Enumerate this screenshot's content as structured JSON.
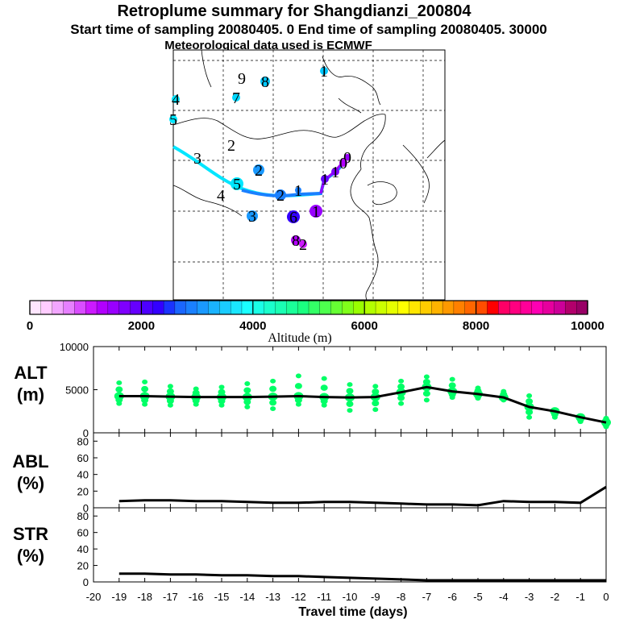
{
  "header": {
    "title": "Retroplume summary for Shangdianzi_200804",
    "subtitle": "Start time of sampling 20080405.     0     End time of sampling 20080405. 30000",
    "meteo": "Meteorological data used is ECMWF"
  },
  "colorbar": {
    "title": "Altitude (m)",
    "ticks": [
      "0",
      "2000",
      "4000",
      "6000",
      "8000",
      "10000"
    ],
    "range": [
      0,
      10000
    ],
    "colors": [
      "#ffe6ff",
      "#ffccff",
      "#f2a6ff",
      "#e680ff",
      "#d94dff",
      "#cc1aff",
      "#b200ff",
      "#9900ff",
      "#7f00ff",
      "#6600ff",
      "#4d00ff",
      "#3300ff",
      "#1a33ff",
      "#1a66ff",
      "#1a80ff",
      "#1a99ff",
      "#1ab3ff",
      "#1accff",
      "#1ae6ff",
      "#1affff",
      "#1affe6",
      "#1affcc",
      "#1affb3",
      "#1aff99",
      "#1aff80",
      "#33ff66",
      "#4dff4d",
      "#66ff33",
      "#80ff1a",
      "#99ff00",
      "#b3ff00",
      "#ccff00",
      "#e6ff00",
      "#ffff00",
      "#ffe600",
      "#ffcc00",
      "#ffb300",
      "#ff9900",
      "#ff8000",
      "#ff6600",
      "#ff4d00",
      "#ff0000",
      "#ff0066",
      "#ff0080",
      "#ff0099",
      "#ff00b3",
      "#e6009e",
      "#cc0099",
      "#b2006b",
      "#990066"
    ]
  },
  "map_labels": [
    {
      "text": "1",
      "color": "#00c8ff",
      "dot": true
    },
    {
      "text": "9",
      "color": "#1a99ff",
      "dot": false
    },
    {
      "text": "8",
      "color": "#00c8ff",
      "dot": true
    },
    {
      "text": "7",
      "color": "#00d8ff",
      "dot": true
    },
    {
      "text": "4",
      "color": "#00e6ff",
      "dot": true
    },
    {
      "text": "5",
      "color": "#00e6ff",
      "dot": true
    },
    {
      "text": "3",
      "color": "#00f0ff",
      "dot": false
    },
    {
      "text": "2",
      "color": "#00f0ff",
      "dot": false
    },
    {
      "text": "2",
      "color": "#1a99ff",
      "dot": true
    },
    {
      "text": "4",
      "color": "#00e6ff",
      "dot": false
    },
    {
      "text": "5",
      "color": "#00e6ff",
      "dot": true
    },
    {
      "text": "3",
      "color": "#1a99ff",
      "dot": true
    },
    {
      "text": "2",
      "color": "#1a80ff",
      "dot": true
    },
    {
      "text": "1",
      "color": "#1a80ff",
      "dot": true
    },
    {
      "text": "6",
      "color": "#3300ff",
      "dot": true
    },
    {
      "text": "8",
      "color": "#b200ff",
      "dot": true
    },
    {
      "text": "2",
      "color": "#cc1aff",
      "dot": true
    },
    {
      "text": "1",
      "color": "#6600ff",
      "dot": true
    },
    {
      "text": "0",
      "color": "#9900ff",
      "dot": true
    },
    {
      "text": "1",
      "color": "#8000ff",
      "dot": true
    },
    {
      "text": "0",
      "color": "#b200ff",
      "dot": true
    },
    {
      "text": "1",
      "color": "#9900ff",
      "dot": true
    }
  ],
  "chart_data": [
    {
      "type": "line",
      "panel": "ALT",
      "ylabel_line1": "ALT",
      "ylabel_line2": "(m)",
      "ylim": [
        0,
        10000
      ],
      "yticks": [
        "10000",
        "5000",
        "0"
      ],
      "x": [
        -19,
        -18,
        -17,
        -16,
        -15,
        -14,
        -13,
        -12,
        -11,
        -10,
        -9,
        -8,
        -7,
        -6,
        -5,
        -4,
        -3,
        -2,
        -1,
        0
      ],
      "values": [
        4250,
        4250,
        4200,
        4150,
        4150,
        4150,
        4200,
        4250,
        4150,
        4100,
        4150,
        4700,
        5300,
        4800,
        4500,
        4100,
        3000,
        2500,
        1800,
        1200
      ],
      "upper": [
        5800,
        5900,
        5400,
        5100,
        5300,
        5700,
        6000,
        6600,
        6300,
        5600,
        5400,
        6000,
        6500,
        6200,
        5200,
        4800,
        4300,
        2600,
        1700,
        1700
      ],
      "lower": [
        3400,
        3300,
        3200,
        3300,
        3200,
        3000,
        2800,
        3300,
        3200,
        2600,
        2700,
        3400,
        3800,
        4100,
        4000,
        3800,
        1800,
        1800,
        1300,
        700
      ],
      "band_color": "#00ff66"
    },
    {
      "type": "line",
      "panel": "ABL",
      "ylabel_line1": "ABL",
      "ylabel_line2": "(%)",
      "ylim": [
        0,
        90
      ],
      "yticks": [
        "80",
        "60",
        "40",
        "20",
        "0"
      ],
      "x": [
        -19,
        -18,
        -17,
        -16,
        -15,
        -14,
        -13,
        -12,
        -11,
        -10,
        -9,
        -8,
        -7,
        -6,
        -5,
        -4,
        -3,
        -2,
        -1,
        0
      ],
      "values": [
        8,
        9,
        9,
        8,
        8,
        7,
        6,
        6,
        7,
        7,
        6,
        5,
        4,
        4,
        3,
        8,
        7,
        7,
        6,
        25
      ]
    },
    {
      "type": "line",
      "panel": "STR",
      "ylabel_line1": "STR",
      "ylabel_line2": "(%)",
      "ylim": [
        0,
        90
      ],
      "yticks": [
        "80",
        "60",
        "40",
        "20",
        "0"
      ],
      "x": [
        -19,
        -18,
        -17,
        -16,
        -15,
        -14,
        -13,
        -12,
        -11,
        -10,
        -9,
        -8,
        -7,
        -6,
        -5,
        -4,
        -3,
        -2,
        -1,
        0
      ],
      "values": [
        10,
        10,
        9,
        9,
        8,
        8,
        7,
        7,
        6,
        5,
        4,
        3,
        2,
        2,
        2,
        2,
        2,
        2,
        2,
        2
      ]
    }
  ],
  "xaxis": {
    "label": "Travel time (days)",
    "ticks": [
      "-20",
      "-19",
      "-18",
      "-17",
      "-16",
      "-15",
      "-14",
      "-13",
      "-12",
      "-11",
      "-10",
      "-9",
      "-8",
      "-7",
      "-6",
      "-5",
      "-4",
      "-3",
      "-2",
      "-1",
      "0"
    ],
    "range": [
      -20,
      0
    ]
  }
}
